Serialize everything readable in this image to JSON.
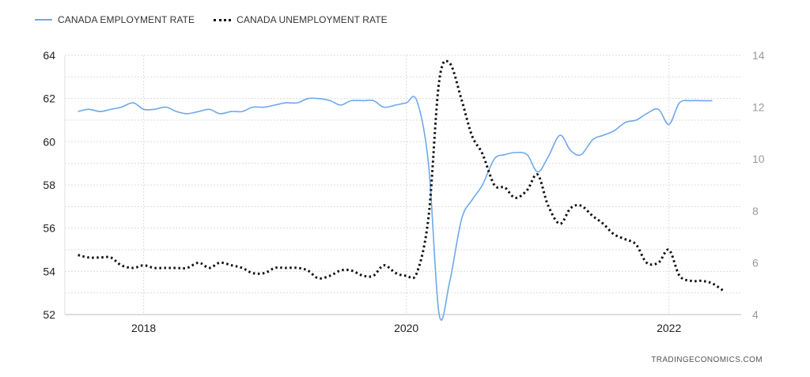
{
  "chart_data": {
    "type": "line",
    "title": "",
    "legend_position": "top-left",
    "grid": true,
    "x_ticks": [
      "2018",
      "2020",
      "2022"
    ],
    "xlim": [
      2017.4,
      2022.55
    ],
    "y_left": {
      "ylim": [
        52,
        64
      ],
      "ticks": [
        "52",
        "54",
        "56",
        "58",
        "60",
        "62",
        "64"
      ]
    },
    "y_right": {
      "ylim": [
        4,
        14
      ],
      "ticks": [
        "4",
        "6",
        "8",
        "10",
        "12",
        "14"
      ]
    },
    "series": [
      {
        "name": "CANADA EMPLOYMENT RATE",
        "axis": "left",
        "color": "#6ea8ea",
        "style": "solid",
        "x": [
          2017.5,
          2017.58,
          2017.67,
          2017.75,
          2017.83,
          2017.92,
          2018.0,
          2018.08,
          2018.17,
          2018.25,
          2018.33,
          2018.42,
          2018.5,
          2018.58,
          2018.67,
          2018.75,
          2018.83,
          2018.92,
          2019.0,
          2019.08,
          2019.17,
          2019.25,
          2019.33,
          2019.42,
          2019.5,
          2019.58,
          2019.67,
          2019.75,
          2019.83,
          2019.92,
          2020.0,
          2020.08,
          2020.17,
          2020.25,
          2020.33,
          2020.42,
          2020.5,
          2020.58,
          2020.67,
          2020.75,
          2020.83,
          2020.92,
          2021.0,
          2021.08,
          2021.17,
          2021.25,
          2021.33,
          2021.42,
          2021.5,
          2021.58,
          2021.67,
          2021.75,
          2021.83,
          2021.92,
          2022.0,
          2022.08,
          2022.17,
          2022.25,
          2022.33
        ],
        "values": [
          61.4,
          61.5,
          61.4,
          61.5,
          61.6,
          61.8,
          61.5,
          61.5,
          61.6,
          61.4,
          61.3,
          61.4,
          61.5,
          61.3,
          61.4,
          61.4,
          61.6,
          61.6,
          61.7,
          61.8,
          61.8,
          62.0,
          62.0,
          61.9,
          61.7,
          61.9,
          61.9,
          61.9,
          61.6,
          61.7,
          61.8,
          61.9,
          58.9,
          52.0,
          53.5,
          56.4,
          57.3,
          58.0,
          59.2,
          59.4,
          59.5,
          59.4,
          58.6,
          59.3,
          60.3,
          59.6,
          59.4,
          60.1,
          60.3,
          60.5,
          60.9,
          61.0,
          61.3,
          61.5,
          60.8,
          61.8,
          61.9,
          61.9,
          61.9
        ]
      },
      {
        "name": "CANADA UNEMPLOYMENT RATE",
        "axis": "right",
        "color": "#111111",
        "style": "dotted",
        "x": [
          2017.5,
          2017.58,
          2017.67,
          2017.75,
          2017.83,
          2017.92,
          2018.0,
          2018.08,
          2018.17,
          2018.25,
          2018.33,
          2018.42,
          2018.5,
          2018.58,
          2018.67,
          2018.75,
          2018.83,
          2018.92,
          2019.0,
          2019.08,
          2019.17,
          2019.25,
          2019.33,
          2019.42,
          2019.5,
          2019.58,
          2019.67,
          2019.75,
          2019.83,
          2019.92,
          2020.0,
          2020.08,
          2020.17,
          2020.25,
          2020.33,
          2020.42,
          2020.5,
          2020.58,
          2020.67,
          2020.75,
          2020.83,
          2020.92,
          2021.0,
          2021.08,
          2021.17,
          2021.25,
          2021.33,
          2021.42,
          2021.5,
          2021.58,
          2021.67,
          2021.75,
          2021.83,
          2021.92,
          2022.0,
          2022.08,
          2022.17,
          2022.25,
          2022.33,
          2022.42
        ],
        "values": [
          6.3,
          6.2,
          6.2,
          6.2,
          5.9,
          5.8,
          5.9,
          5.8,
          5.8,
          5.8,
          5.8,
          6.0,
          5.8,
          6.0,
          5.9,
          5.8,
          5.6,
          5.6,
          5.8,
          5.8,
          5.8,
          5.7,
          5.4,
          5.5,
          5.7,
          5.7,
          5.5,
          5.5,
          5.9,
          5.6,
          5.5,
          5.6,
          7.8,
          13.0,
          13.7,
          12.3,
          10.9,
          10.2,
          9.0,
          8.9,
          8.5,
          8.8,
          9.4,
          8.2,
          7.5,
          8.1,
          8.2,
          7.8,
          7.5,
          7.1,
          6.9,
          6.7,
          6.0,
          6.0,
          6.5,
          5.5,
          5.3,
          5.3,
          5.2,
          4.9
        ]
      }
    ]
  },
  "watermark": "TRADINGECONOMICS.COM"
}
